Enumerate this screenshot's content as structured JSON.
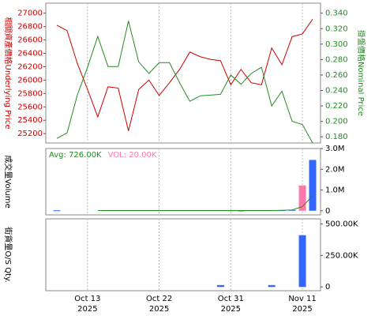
{
  "chart_data": [
    {
      "type": "line",
      "ylabel": "相關資產價格Underlying Price",
      "y2label": "掛盤價格Nominal Price",
      "ylim": [
        25060,
        27150
      ],
      "yticks": [
        25200,
        25400,
        25600,
        25800,
        26000,
        26200,
        26400,
        26600,
        26800,
        27000
      ],
      "y2lim": [
        0.172,
        0.353
      ],
      "y2ticks": [
        {
          "value": 0.18,
          "label": "0.180"
        },
        {
          "value": 0.2,
          "label": "0.200"
        },
        {
          "value": 0.22,
          "label": "0.220"
        },
        {
          "value": 0.24,
          "label": "0.240"
        },
        {
          "value": 0.26,
          "label": "0.260"
        },
        {
          "value": 0.28,
          "label": "0.280"
        },
        {
          "value": 0.3,
          "label": "0.300"
        },
        {
          "value": 0.32,
          "label": "0.320"
        },
        {
          "value": 0.34,
          "label": "0.340"
        }
      ],
      "series": [
        {
          "color": "#cc0000",
          "values": [
            26820,
            26740,
            26250,
            25860,
            25450,
            25900,
            25880,
            25240,
            25860,
            26000,
            25770,
            25960,
            26160,
            26420,
            26350,
            26310,
            26290,
            25930,
            26160,
            25960,
            25930,
            26480,
            26230,
            26650,
            26690,
            26910
          ]
        },
        {
          "color": "#228b22",
          "axis": "y2",
          "values": [
            0.178,
            0.185,
            0.234,
            0.27,
            0.31,
            0.271,
            0.271,
            0.33,
            0.277,
            0.262,
            0.276,
            0.276,
            0.25,
            0.226,
            0.233,
            0.234,
            0.235,
            0.26,
            0.248,
            0.262,
            0.27,
            0.22,
            0.239,
            0.2,
            0.196,
            0.172
          ]
        }
      ]
    },
    {
      "type": "bar",
      "ylabel": "成交量Volume",
      "annotations": [
        {
          "text": "Avg: 726.00K",
          "color": "#228b22"
        },
        {
          "text": "VOL: 20.00K",
          "color": "#ff77aa"
        }
      ],
      "ylim": [
        -200000,
        3000000
      ],
      "yticks": [
        0,
        {
          "value": 1000000,
          "label": "1.0M"
        },
        {
          "value": 2000000,
          "label": "2.0M"
        },
        {
          "value": 3000000,
          "label": "3.0M"
        }
      ],
      "series": [
        {
          "type": "bar",
          "color": "#3366ff",
          "values": [
            20000,
            null,
            null,
            null,
            null,
            null,
            null,
            null,
            null,
            null,
            null,
            null,
            null,
            null,
            null,
            null,
            null,
            20000,
            10000,
            null,
            null,
            30000,
            30000,
            40000,
            null,
            2450000
          ]
        },
        {
          "type": "bar",
          "color": "#ff77aa",
          "values": [
            null,
            null,
            null,
            null,
            null,
            null,
            null,
            null,
            null,
            null,
            null,
            null,
            null,
            null,
            null,
            null,
            null,
            null,
            null,
            null,
            null,
            null,
            null,
            null,
            1220000,
            null
          ]
        },
        {
          "type": "line",
          "color": "#228b22",
          "values": [
            null,
            null,
            null,
            null,
            10000,
            10000,
            10000,
            10000,
            10000,
            10000,
            10000,
            10000,
            10000,
            10000,
            10000,
            10000,
            10000,
            10000,
            10000,
            10000,
            10000,
            10000,
            20000,
            40000,
            200000,
            726000
          ]
        }
      ]
    },
    {
      "type": "bar",
      "ylabel": "街貨量O/S Qty.",
      "categories": [
        null,
        null,
        null,
        "Oct 13 2025",
        null,
        null,
        null,
        null,
        null,
        null,
        "Oct 22 2025",
        null,
        null,
        null,
        null,
        null,
        null,
        "Oct 31 2025",
        null,
        null,
        null,
        null,
        null,
        null,
        "Nov 11 2025",
        null
      ],
      "ylim": [
        -30000,
        540000
      ],
      "yticks": [
        0,
        {
          "value": 250000,
          "label": "250.00K"
        },
        {
          "value": 500000,
          "label": "500.00K"
        }
      ],
      "series": [
        {
          "type": "bar",
          "color": "#3366ff",
          "values": [
            null,
            null,
            null,
            null,
            null,
            null,
            null,
            null,
            null,
            null,
            null,
            null,
            null,
            null,
            null,
            null,
            15000,
            null,
            null,
            null,
            null,
            15000,
            null,
            null,
            410000,
            null
          ]
        }
      ]
    }
  ]
}
